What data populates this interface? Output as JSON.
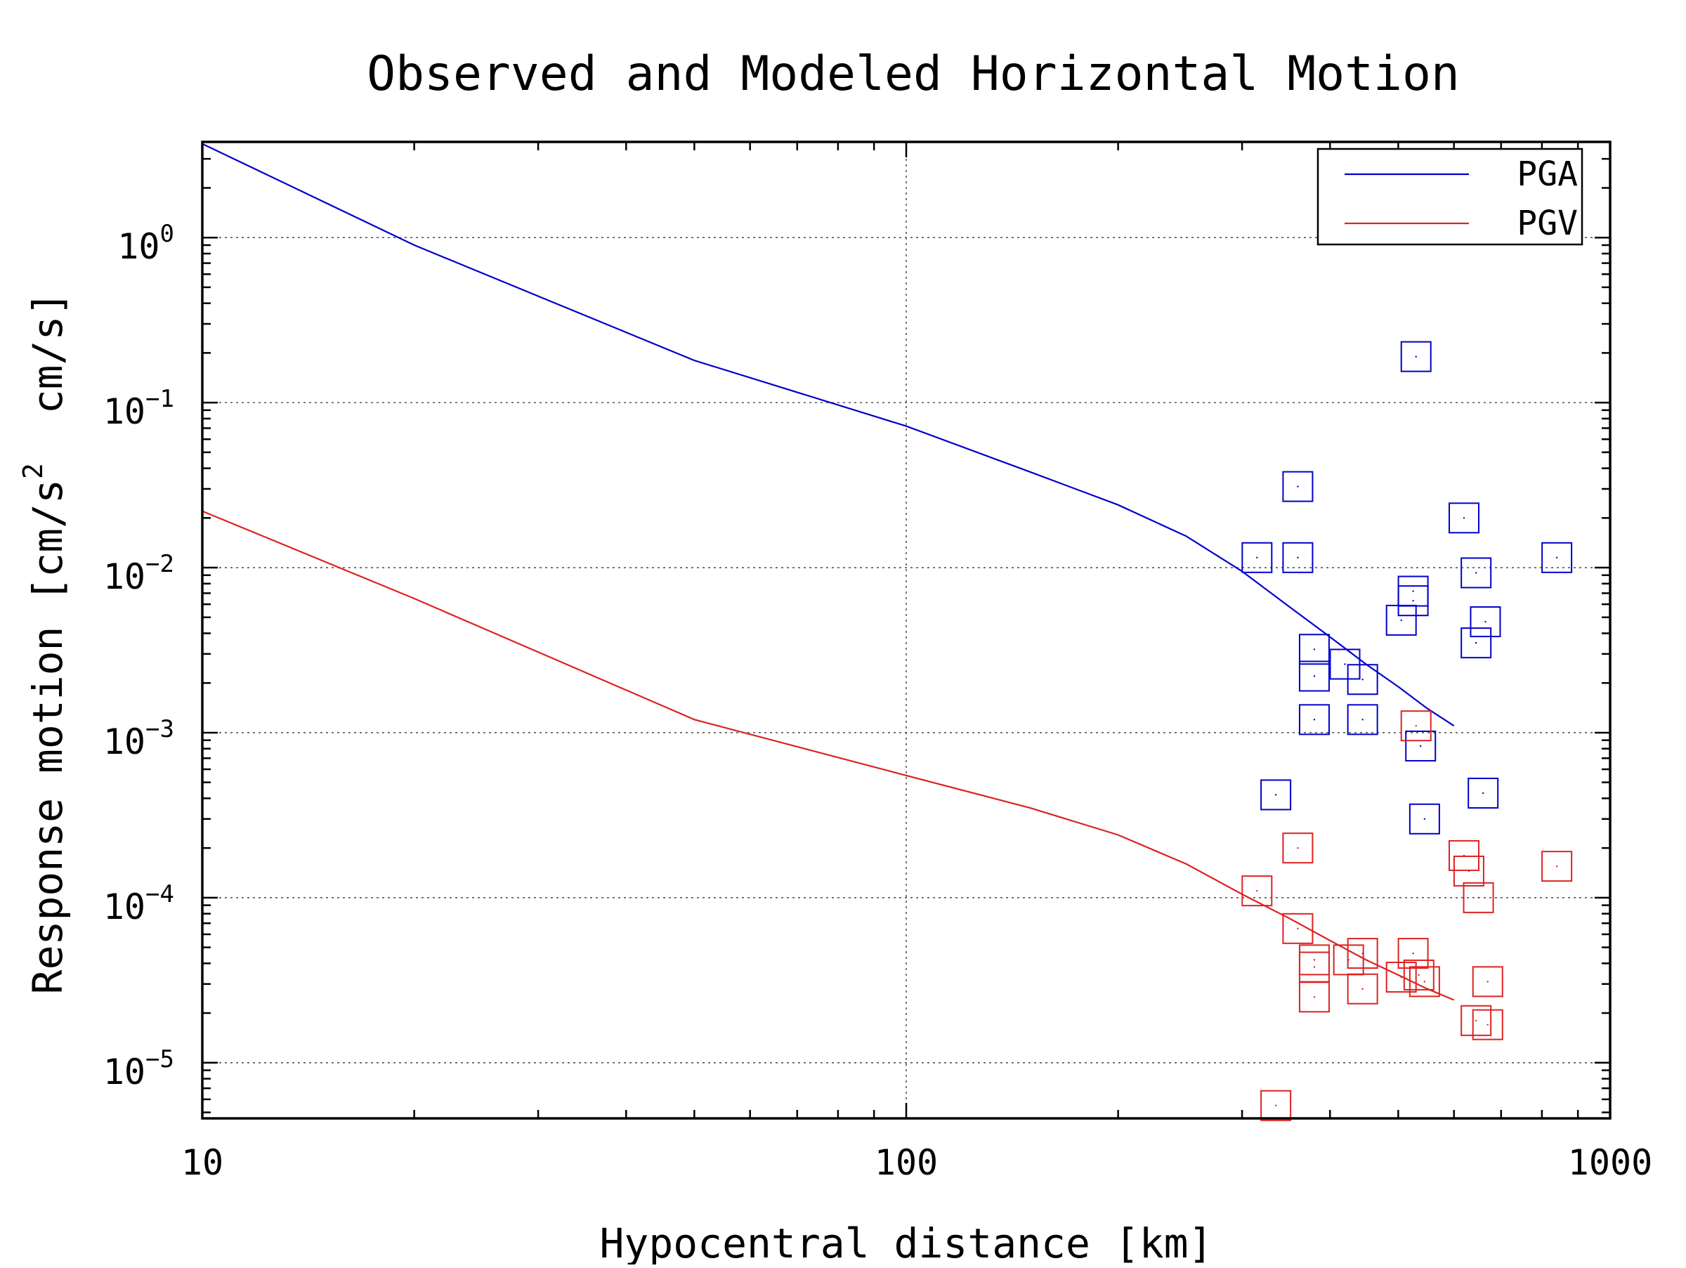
{
  "chart_data": {
    "type": "scatter",
    "title": "Observed and Modeled Horizontal Motion",
    "xlabel": "Hypocentral distance [km]",
    "ylabel": {
      "prefix": "Response motion [cm/s",
      "superscript": "2",
      "suffix": "  cm/s]"
    },
    "x_scale": "log",
    "y_scale": "log",
    "xlim": [
      10,
      1000
    ],
    "ylim": [
      4.6e-06,
      3.8
    ],
    "grid": true,
    "legend_position": "top-right",
    "x_ticks": [
      {
        "value": 10,
        "label": "10"
      },
      {
        "value": 100,
        "label": "100"
      },
      {
        "value": 1000,
        "label": "1000"
      }
    ],
    "y_ticks": [
      {
        "value": 1,
        "base": "10",
        "exp": "0"
      },
      {
        "value": 0.1,
        "base": "10",
        "exp": "−1"
      },
      {
        "value": 0.01,
        "base": "10",
        "exp": "−2"
      },
      {
        "value": 0.001,
        "base": "10",
        "exp": "−3"
      },
      {
        "value": 0.0001,
        "base": "10",
        "exp": "−4"
      },
      {
        "value": 1e-05,
        "base": "10",
        "exp": "−5"
      }
    ],
    "series": [
      {
        "name": "PGA",
        "color": "#0000cc",
        "model_line": {
          "x": [
            10,
            20,
            50,
            100,
            150,
            200,
            250,
            300,
            350,
            400,
            450,
            500,
            550,
            600
          ],
          "y": [
            3.7,
            0.9,
            0.18,
            0.072,
            0.038,
            0.024,
            0.0155,
            0.0095,
            0.0058,
            0.0038,
            0.0026,
            0.0019,
            0.0014,
            0.0011
          ]
        },
        "observed": {
          "x": [
            530,
            360,
            620,
            315,
            360,
            840,
            645,
            525,
            505,
            525,
            665,
            380,
            645,
            420,
            380,
            445,
            380,
            445,
            538,
            335,
            660,
            545
          ],
          "y": [
            0.19,
            0.031,
            0.02,
            0.0115,
            0.0115,
            0.0115,
            0.0093,
            0.0072,
            0.0048,
            0.0063,
            0.0047,
            0.0032,
            0.0035,
            0.0026,
            0.0022,
            0.0021,
            0.0012,
            0.0012,
            0.00083,
            0.00042,
            0.00043,
            0.0003
          ]
        }
      },
      {
        "name": "PGV",
        "color": "#dd2222",
        "model_line": {
          "x": [
            10,
            20,
            50,
            100,
            150,
            200,
            250,
            300,
            350,
            400,
            450,
            500,
            550,
            600
          ],
          "y": [
            0.022,
            0.0065,
            0.0012,
            0.00055,
            0.00035,
            0.00024,
            0.00016,
            0.000105,
            7.5e-05,
            5.5e-05,
            4.2e-05,
            3.4e-05,
            2.8e-05,
            2.4e-05
          ]
        },
        "observed": {
          "x": [
            530,
            360,
            620,
            840,
            630,
            315,
            650,
            360,
            380,
            425,
            445,
            380,
            525,
            505,
            545,
            535,
            670,
            645,
            670,
            380,
            445,
            335
          ],
          "y": [
            0.0011,
            0.0002,
            0.00018,
            0.000155,
            0.000145,
            0.00011,
            0.0001,
            6.5e-05,
            4.2e-05,
            4.2e-05,
            4.6e-05,
            3.8e-05,
            4.6e-05,
            3.3e-05,
            3.1e-05,
            3.4e-05,
            3.1e-05,
            1.8e-05,
            1.7e-05,
            2.5e-05,
            2.8e-05,
            5.5e-06
          ]
        }
      }
    ]
  }
}
